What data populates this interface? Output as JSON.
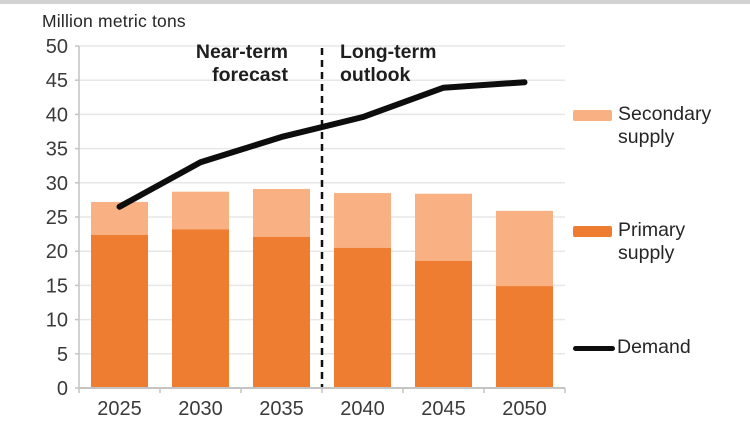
{
  "title": "Million metric tons",
  "annotations": {
    "near_term": "Near-term\nforecast",
    "long_term": "Long-term\noutlook"
  },
  "legend": {
    "secondary": "Secondary supply",
    "primary": "Primary supply",
    "demand": "Demand"
  },
  "colors": {
    "primary_supply": "#EE7D31",
    "secondary_supply": "#F9B083",
    "demand_line": "#0D0D0D",
    "gridline": "#E7E7E7",
    "axis": "#C4C4C4",
    "tick_text": "#3A3A3A"
  },
  "chart_data": {
    "type": "combo-stacked-bar-line",
    "title": "",
    "ylabel": "Million metric tons",
    "xlabel": "",
    "categories": [
      "2025",
      "2030",
      "2035",
      "2040",
      "2045",
      "2050"
    ],
    "stacked": true,
    "series": [
      {
        "name": "Primary supply",
        "type": "bar",
        "color": "#EE7D31",
        "values": [
          22.4,
          23.2,
          22.1,
          20.5,
          18.6,
          14.9
        ]
      },
      {
        "name": "Secondary supply",
        "type": "bar",
        "color": "#F9B083",
        "values": [
          4.8,
          5.5,
          7.0,
          8.0,
          9.8,
          11.0
        ]
      },
      {
        "name": "Demand",
        "type": "line",
        "color": "#0D0D0D",
        "values": [
          26.5,
          33.0,
          36.7,
          39.6,
          43.9,
          44.7
        ]
      }
    ],
    "ylim": [
      0,
      50
    ],
    "ytick_step": 5,
    "grid": "horizontal",
    "legend_position": "right",
    "separator": {
      "style": "dashed-vertical",
      "after_category": "2035",
      "label_left_of_line": "Near-term forecast",
      "label_right_of_line": "Long-term outlook"
    }
  }
}
